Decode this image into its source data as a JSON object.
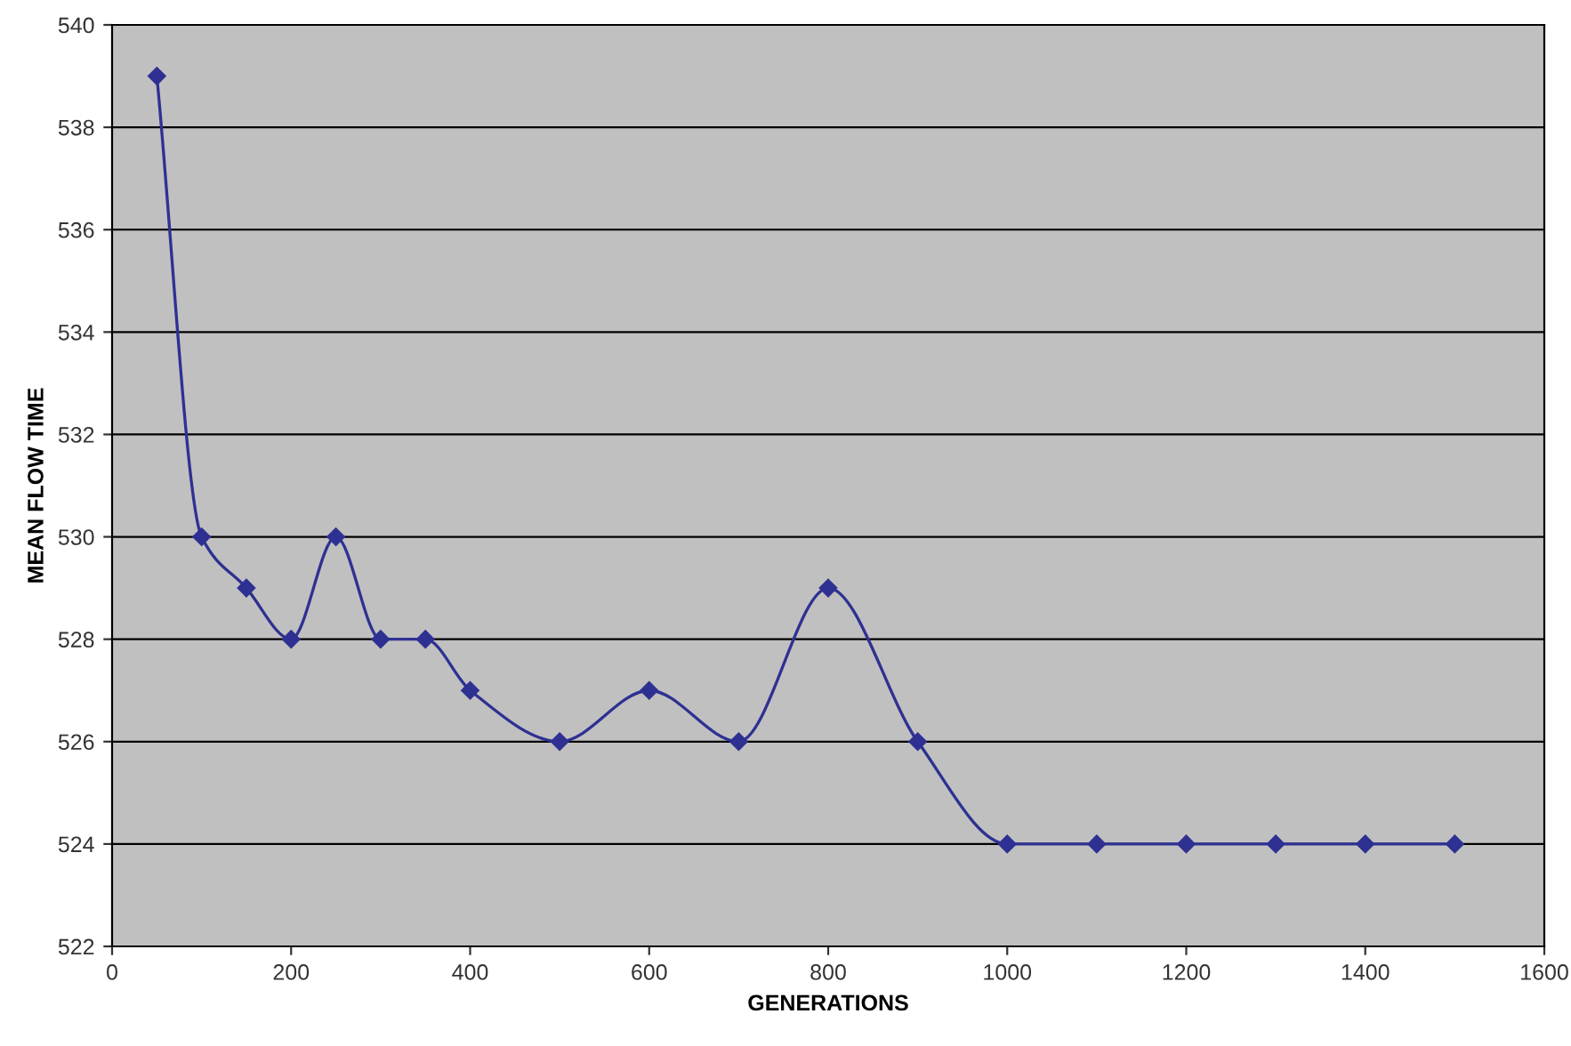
{
  "chart_data": {
    "type": "line",
    "xlabel": "GENERATIONS",
    "ylabel": "MEAN FLOW TIME",
    "x": [
      50,
      100,
      150,
      200,
      250,
      300,
      350,
      400,
      500,
      600,
      700,
      800,
      900,
      1000,
      1100,
      1200,
      1300,
      1400,
      1500
    ],
    "series": [
      {
        "color": "#2e3192",
        "values": [
          539,
          530,
          529,
          528,
          530,
          528,
          528,
          527,
          526,
          527,
          526,
          529,
          526,
          524,
          524,
          524,
          524,
          524,
          524
        ]
      }
    ],
    "xlim": [
      0,
      1600
    ],
    "xticks": [
      0,
      200,
      400,
      600,
      800,
      1000,
      1200,
      1400,
      1600
    ],
    "ylim": [
      522,
      540
    ],
    "yticks": [
      522,
      524,
      526,
      528,
      530,
      532,
      534,
      536,
      538,
      540
    ],
    "grid": "y",
    "legend": false,
    "marker": "diamond",
    "line_style": "solid"
  }
}
